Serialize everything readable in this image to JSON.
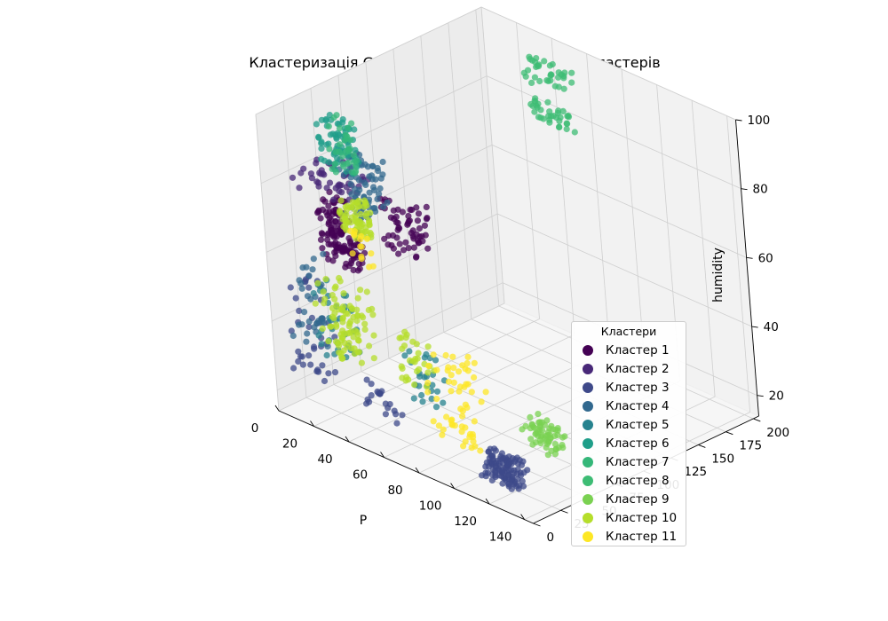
{
  "chart_data": {
    "type": "scatter",
    "projection": "3d",
    "title": "Кластеризація Grid-Based (Agglomerative) 11 кластерів",
    "xlabel": "P",
    "ylabel": "",
    "zlabel": "humidity",
    "xticks": [
      0,
      20,
      40,
      60,
      80,
      100,
      120,
      140
    ],
    "yticks": [
      0,
      25,
      50,
      75,
      100,
      125,
      150,
      175,
      200
    ],
    "zticks": [
      20,
      40,
      60,
      80,
      100
    ],
    "xlim": [
      0,
      145
    ],
    "ylim": [
      0,
      205
    ],
    "zlim": [
      14,
      100
    ],
    "grid": true,
    "legend": {
      "title": "Кластери",
      "position": "bottom-right",
      "entries": [
        "Кластер 1",
        "Кластер 2",
        "Кластер 3",
        "Кластер 4",
        "Кластер 5",
        "Кластер 6",
        "Кластер 7",
        "Кластер 8",
        "Кластер 9",
        "Кластер 10",
        "Кластер 11"
      ]
    },
    "series": [
      {
        "name": "Кластер 1",
        "color": "#440154",
        "clusters": [
          {
            "x": [
              20,
              40
            ],
            "y": [
              15,
              30
            ],
            "z": [
              60,
              70
            ],
            "n": 90
          },
          {
            "x": [
              55,
              75
            ],
            "y": [
              20,
              35
            ],
            "z": [
              70,
              85
            ],
            "n": 60
          },
          {
            "x": [
              30,
              45
            ],
            "y": [
              0,
              10
            ],
            "z": [
              75,
              85
            ],
            "n": 40
          }
        ]
      },
      {
        "name": "Кластер 2",
        "color": "#482878",
        "clusters": [
          {
            "x": [
              5,
              35
            ],
            "y": [
              20,
              45
            ],
            "z": [
              76,
              84
            ],
            "n": 45
          }
        ]
      },
      {
        "name": "Кластер 3",
        "color": "#3e4989",
        "clusters": [
          {
            "x": [
              110,
              130
            ],
            "y": [
              10,
              22
            ],
            "z": [
              18,
              26
            ],
            "n": 110
          },
          {
            "x": [
              5,
              25
            ],
            "y": [
              5,
              20
            ],
            "z": [
              25,
              55
            ],
            "n": 40
          },
          {
            "x": [
              40,
              60
            ],
            "y": [
              10,
              25
            ],
            "z": [
              20,
              30
            ],
            "n": 20
          }
        ]
      },
      {
        "name": "Кластер 4",
        "color": "#31688e",
        "clusters": [
          {
            "x": [
              20,
              40
            ],
            "y": [
              35,
              55
            ],
            "z": [
              70,
              88
            ],
            "n": 70
          },
          {
            "x": [
              5,
              20
            ],
            "y": [
              10,
              25
            ],
            "z": [
              30,
              60
            ],
            "n": 30
          }
        ]
      },
      {
        "name": "Кластер 5",
        "color": "#26828e",
        "clusters": [
          {
            "x": [
              20,
              40
            ],
            "y": [
              5,
              20
            ],
            "z": [
              35,
              55
            ],
            "n": 35
          },
          {
            "x": [
              45,
              60
            ],
            "y": [
              45,
              60
            ],
            "z": [
              20,
              35
            ],
            "n": 25
          }
        ]
      },
      {
        "name": "Кластер 6",
        "color": "#1f9e89",
        "clusters": [
          {
            "x": [
              8,
              28
            ],
            "y": [
              38,
              48
            ],
            "z": [
              82,
              97
            ],
            "n": 65
          }
        ]
      },
      {
        "name": "Кластер 7",
        "color": "#35b779",
        "clusters": [
          {
            "x": [
              14,
              26
            ],
            "y": [
              40,
              50
            ],
            "z": [
              80,
              96
            ],
            "n": 35
          }
        ]
      },
      {
        "name": "Кластер 8",
        "color": "#3dbc74",
        "clusters": [
          {
            "x": [
              25,
              50
            ],
            "y": [
              200,
              208
            ],
            "z": [
              75,
              80
            ],
            "n": 35
          },
          {
            "x": [
              25,
              50
            ],
            "y": [
              200,
              208
            ],
            "z": [
              85,
              92
            ],
            "n": 35
          }
        ]
      },
      {
        "name": "Кластер 9",
        "color": "#7ad151",
        "clusters": [
          {
            "x": [
              100,
              120
            ],
            "y": [
              60,
              75
            ],
            "z": [
              18,
              25
            ],
            "n": 60
          }
        ]
      },
      {
        "name": "Кластер 10",
        "color": "#b5de2b",
        "clusters": [
          {
            "x": [
              30,
              45
            ],
            "y": [
              15,
              30
            ],
            "z": [
              70,
              80
            ],
            "n": 70
          },
          {
            "x": [
              20,
              45
            ],
            "y": [
              5,
              25
            ],
            "z": [
              35,
              55
            ],
            "n": 90
          },
          {
            "x": [
              40,
              60
            ],
            "y": [
              40,
              55
            ],
            "z": [
              25,
              40
            ],
            "n": 30
          }
        ]
      },
      {
        "name": "Кластер 11",
        "color": "#fde725",
        "clusters": [
          {
            "x": [
              75,
              100
            ],
            "y": [
              15,
              40
            ],
            "z": [
              20,
              45
            ],
            "n": 60
          },
          {
            "x": [
              30,
              45
            ],
            "y": [
              25,
              35
            ],
            "z": [
              60,
              70
            ],
            "n": 15
          }
        ]
      }
    ]
  }
}
